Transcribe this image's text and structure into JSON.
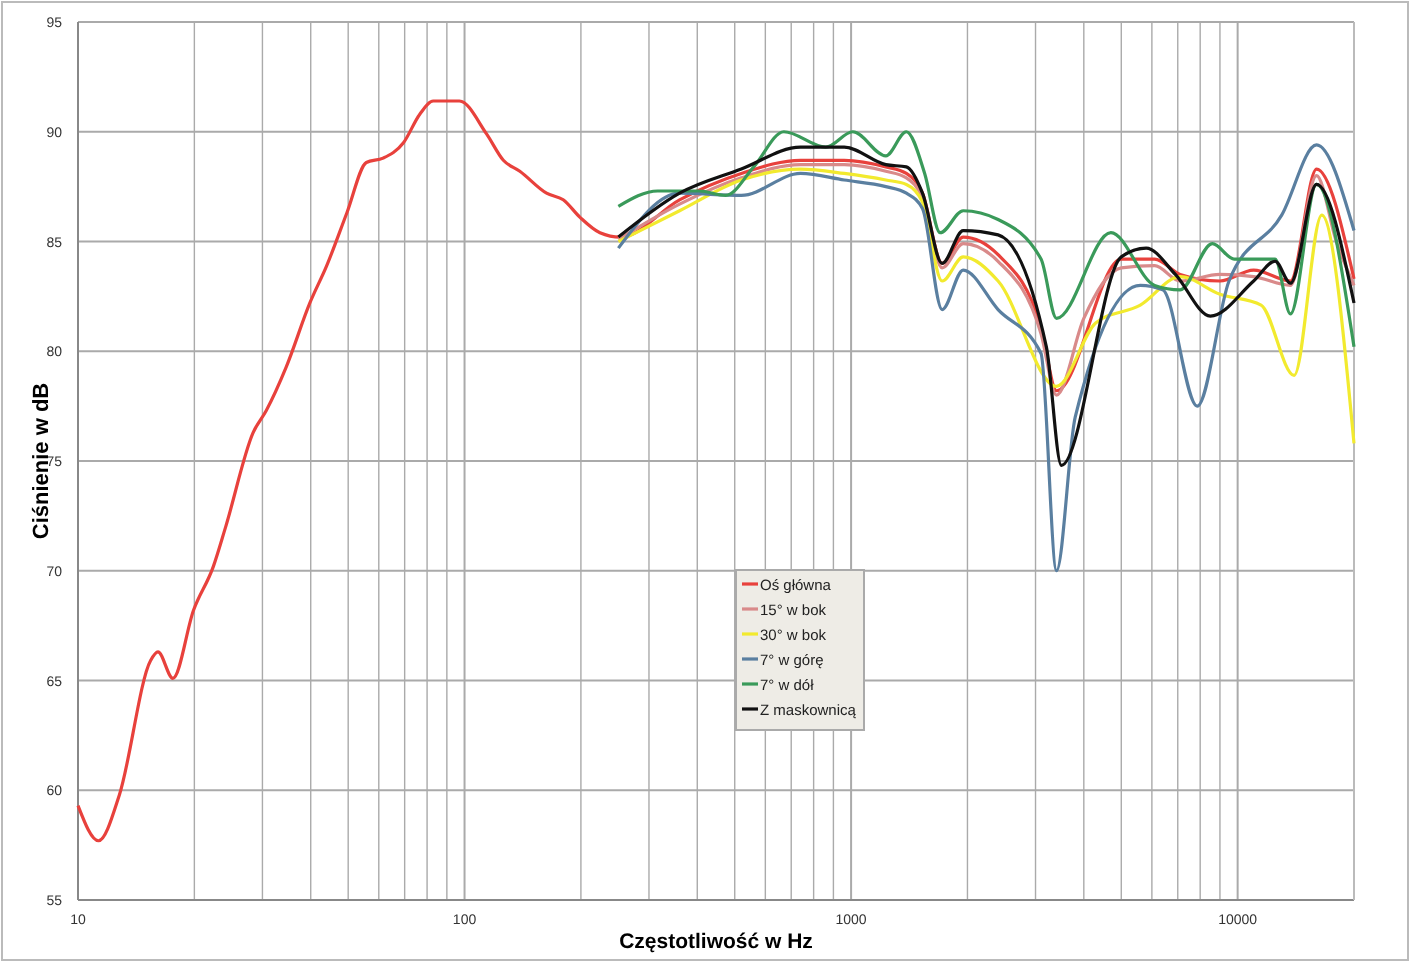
{
  "chart_data": {
    "type": "line",
    "xlabel": "Częstotliwość w Hz",
    "ylabel": "Ciśnienie w dB",
    "log": "x",
    "xlim": [
      10,
      20000
    ],
    "ylim": [
      55,
      95
    ],
    "xticks": [
      10,
      {
        "value": 20,
        "label": null
      },
      {
        "value": 30,
        "label": null
      },
      {
        "value": 40,
        "label": null
      },
      {
        "value": 50,
        "label": null
      },
      {
        "value": 60,
        "label": null
      },
      {
        "value": 70,
        "label": null
      },
      {
        "value": 80,
        "label": null
      },
      {
        "value": 90,
        "label": null
      },
      100,
      {
        "value": 200,
        "label": null
      },
      {
        "value": 300,
        "label": null
      },
      {
        "value": 400,
        "label": null
      },
      {
        "value": 500,
        "label": null
      },
      {
        "value": 600,
        "label": null
      },
      {
        "value": 700,
        "label": null
      },
      {
        "value": 800,
        "label": null
      },
      {
        "value": 900,
        "label": null
      },
      1000,
      {
        "value": 2000,
        "label": null
      },
      {
        "value": 3000,
        "label": null
      },
      {
        "value": 4000,
        "label": null
      },
      {
        "value": 5000,
        "label": null
      },
      {
        "value": 6000,
        "label": null
      },
      {
        "value": 7000,
        "label": null
      },
      {
        "value": 8000,
        "label": null
      },
      {
        "value": 9000,
        "label": null
      },
      10000
    ],
    "yticks": [
      55,
      60,
      65,
      70,
      75,
      80,
      85,
      90,
      95
    ],
    "grid": true,
    "legend": "bottom",
    "marker": "none",
    "line_style": "solid",
    "series": [
      {
        "name": "Oś główna",
        "color": "#e8413c",
        "x": [
          10,
          11.3,
          12.8,
          15.4,
          16.1,
          17.6,
          19.9,
          22.4,
          24.1,
          28.4,
          30.7,
          34.6,
          39.8,
          44,
          49.6,
          55.7,
          61.6,
          69.5,
          76.6,
          83,
          97,
          114,
          126,
          139,
          163,
          180,
          199,
          224,
          253,
          360,
          520,
          740,
          960,
          1230,
          1390,
          1530,
          1720,
          1950,
          2400,
          3100,
          3400,
          5000,
          6100,
          7100,
          9000,
          11000,
          13700,
          16000,
          20000
        ],
        "values": [
          59.3,
          57.7,
          59.8,
          65.9,
          66.3,
          65.1,
          68.2,
          70.2,
          72.0,
          76.3,
          77.3,
          79.3,
          82.2,
          83.9,
          86.3,
          88.6,
          88.8,
          89.5,
          90.8,
          91.4,
          91.4,
          89.9,
          88.7,
          88.2,
          87.2,
          86.9,
          86.1,
          85.4,
          85.2,
          86.9,
          88.1,
          88.7,
          88.7,
          88.4,
          88.1,
          87.2,
          84.0,
          85.2,
          84.4,
          81.1,
          78.2,
          84.2,
          84.2,
          83.5,
          83.2,
          83.7,
          83.2,
          88.3,
          83.3
        ]
      },
      {
        "name": "15° w bok",
        "color": "#d98a8a",
        "x": [
          250,
          360,
          520,
          740,
          960,
          1230,
          1390,
          1530,
          1720,
          1950,
          2400,
          3100,
          3400,
          4000,
          5000,
          6100,
          7100,
          9000,
          11000,
          13700,
          16000,
          18000,
          20000
        ],
        "values": [
          85.1,
          86.7,
          87.9,
          88.5,
          88.5,
          88.2,
          87.9,
          87.0,
          83.8,
          84.9,
          84.1,
          80.8,
          78.0,
          81.5,
          83.8,
          83.9,
          83.2,
          83.5,
          83.4,
          83.0,
          88.0,
          85.0,
          83.0
        ]
      },
      {
        "name": "30° w bok",
        "color": "#f2ea2e",
        "x": [
          250,
          360,
          520,
          740,
          960,
          1230,
          1390,
          1530,
          1720,
          1950,
          2400,
          3400,
          4300,
          5600,
          7100,
          9000,
          11500,
          14000,
          16500,
          20000
        ],
        "values": [
          85.0,
          86.4,
          87.8,
          88.3,
          88.1,
          87.8,
          87.6,
          86.8,
          83.2,
          84.3,
          83.2,
          78.4,
          81.3,
          82.1,
          83.4,
          82.6,
          82.1,
          78.9,
          86.2,
          75.8
        ]
      },
      {
        "name": "7° w górę",
        "color": "#5a7fa0",
        "x": [
          250,
          360,
          520,
          740,
          960,
          1230,
          1390,
          1530,
          1720,
          1950,
          2400,
          3100,
          3400,
          3800,
          5600,
          6400,
          7860,
          9500,
          13000,
          16000,
          20000
        ],
        "values": [
          84.7,
          87.2,
          87.1,
          88.1,
          87.8,
          87.5,
          87.2,
          86.5,
          81.9,
          83.7,
          81.9,
          79.9,
          70.0,
          77.0,
          83.0,
          82.8,
          77.5,
          83.2,
          86.2,
          89.4,
          85.5
        ]
      },
      {
        "name": "7° w dół",
        "color": "#3a9a5a",
        "x": [
          250,
          316,
          405,
          474,
          560,
          670,
          860,
          1010,
          1230,
          1390,
          1550,
          1700,
          1950,
          2400,
          3100,
          3400,
          4700,
          6100,
          7100,
          8600,
          9800,
          12500,
          13700,
          16000,
          20000
        ],
        "values": [
          86.6,
          87.3,
          87.3,
          87.1,
          88.4,
          90.0,
          89.3,
          90.0,
          88.9,
          90.0,
          88.1,
          85.4,
          86.4,
          86.0,
          84.2,
          81.5,
          85.4,
          83.0,
          82.8,
          84.9,
          84.2,
          84.2,
          81.7,
          87.6,
          80.2
        ]
      },
      {
        "name": "Z maskownicą",
        "color": "#111111",
        "x": [
          250,
          360,
          520,
          740,
          960,
          1230,
          1390,
          1530,
          1720,
          1950,
          2400,
          3200,
          3500,
          5000,
          5800,
          6900,
          8500,
          11000,
          12500,
          13700,
          16000,
          20000
        ],
        "values": [
          85.2,
          87.2,
          88.3,
          89.3,
          89.3,
          88.5,
          88.4,
          87.2,
          84.0,
          85.5,
          85.3,
          80.2,
          74.8,
          84.3,
          84.7,
          83.5,
          81.6,
          83.2,
          84.1,
          83.1,
          87.6,
          82.2
        ]
      }
    ]
  }
}
